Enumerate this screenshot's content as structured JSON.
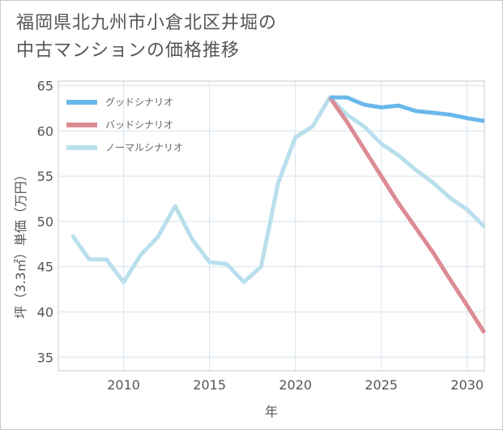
{
  "chart_data": {
    "type": "line",
    "title_lines": [
      "福岡県北九州市小倉北区井堀の",
      "中古マンションの価格推移"
    ],
    "xlabel": "年",
    "ylabel": "坪（3.3㎡）単価（万円）",
    "xlim": [
      2006.2,
      2031
    ],
    "ylim": [
      33.5,
      65.5
    ],
    "x_ticks": [
      2010,
      2015,
      2020,
      2025,
      2030
    ],
    "y_ticks": [
      35,
      40,
      45,
      50,
      55,
      60,
      65
    ],
    "grid": true,
    "legend_position": "top-left",
    "series": [
      {
        "name": "グッドシナリオ",
        "color": "#6ab8ea",
        "x": [
          2022,
          2023,
          2024,
          2025,
          2026,
          2027,
          2028,
          2029,
          2030,
          2031
        ],
        "values": [
          63.7,
          63.7,
          62.9,
          62.6,
          62.8,
          62.2,
          62.0,
          61.8,
          61.4,
          61.1
        ]
      },
      {
        "name": "バッドシナリオ",
        "color": "#dc8b94",
        "x": [
          2022,
          2023,
          2024,
          2025,
          2026,
          2027,
          2028,
          2029,
          2030,
          2031
        ],
        "values": [
          63.7,
          61.0,
          58.0,
          55.0,
          52.0,
          49.3,
          46.6,
          43.6,
          40.7,
          37.7
        ]
      },
      {
        "name": "ノーマルシナリオ",
        "color": "#b9dfec",
        "x": [
          2007,
          2008,
          2009,
          2010,
          2011,
          2012,
          2013,
          2014,
          2015,
          2016,
          2017,
          2018,
          2019,
          2020,
          2021,
          2022,
          2023,
          2024,
          2025,
          2026,
          2027,
          2028,
          2029,
          2030,
          2031
        ],
        "values": [
          48.5,
          45.8,
          45.8,
          43.3,
          46.3,
          48.3,
          51.7,
          48.0,
          45.5,
          45.3,
          43.3,
          45.0,
          54.3,
          59.3,
          60.5,
          63.7,
          61.8,
          60.5,
          58.6,
          57.3,
          55.7,
          54.3,
          52.6,
          51.3,
          49.4
        ]
      }
    ]
  }
}
